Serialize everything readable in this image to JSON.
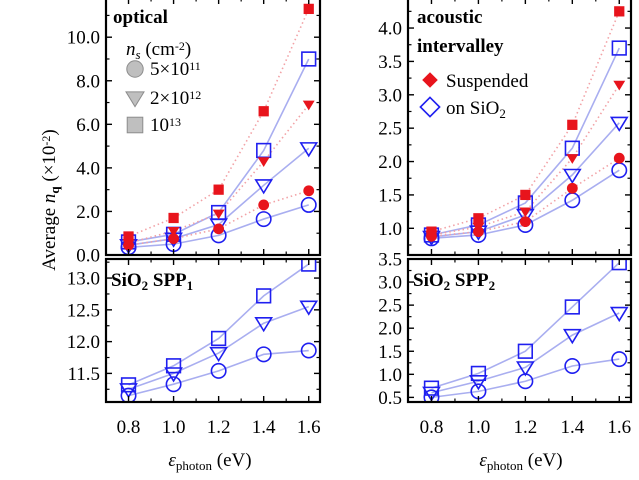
{
  "chart_data": {
    "type": "scatter",
    "ylabel_parts": [
      "Average ",
      "n",
      "q",
      " (×10",
      "-2",
      ")"
    ],
    "xlabel_parts": [
      "ε",
      "photon",
      " (eV)"
    ],
    "x": [
      0.8,
      1.0,
      1.2,
      1.4,
      1.6
    ],
    "xlim": [
      0.7,
      1.65
    ],
    "xticks": [
      "0.8",
      "1.0",
      "1.2",
      "1.4",
      "1.6"
    ],
    "legend_ns": {
      "title_parts": [
        "n",
        "s",
        " (cm",
        "-2",
        ")"
      ],
      "entries": [
        {
          "marker": "circle",
          "parts": [
            "5×10",
            "11"
          ]
        },
        {
          "marker": "triangle",
          "parts": [
            "2×10",
            "12"
          ]
        },
        {
          "marker": "square",
          "parts": [
            "10",
            "13"
          ]
        }
      ]
    },
    "legend_substrate": {
      "entries": [
        {
          "marker": "diamond-filled",
          "label": "Suspended"
        },
        {
          "marker": "diamond-open",
          "label_parts": [
            "on SiO",
            "2"
          ]
        }
      ]
    },
    "colors": {
      "suspended": "#e8141c",
      "sio2": "#1f1ff0",
      "line_sio2": "#a9aef0",
      "line_suspended": "#f2a2a6",
      "legend_gray": "#bfbfbf"
    },
    "panels": [
      {
        "title_parts": [
          "optical"
        ],
        "ylim": [
          0,
          11.8
        ],
        "yticks": [
          "0.0",
          "2.0",
          "4.0",
          "6.0",
          "8.0",
          "10.0"
        ],
        "series": [
          {
            "group": "sio2",
            "marker": "circle",
            "y": [
              0.35,
              0.5,
              0.9,
              1.65,
              2.3
            ]
          },
          {
            "group": "sio2",
            "marker": "triangle",
            "y": [
              0.45,
              0.75,
              1.4,
              3.2,
              4.9
            ]
          },
          {
            "group": "sio2",
            "marker": "square",
            "y": [
              0.6,
              0.95,
              1.95,
              4.8,
              9.0
            ]
          },
          {
            "group": "suspended",
            "marker": "circle",
            "y": [
              0.45,
              0.75,
              1.2,
              2.3,
              2.95
            ]
          },
          {
            "group": "suspended",
            "marker": "triangle",
            "y": [
              0.55,
              1.1,
              1.9,
              4.3,
              6.9
            ]
          },
          {
            "group": "suspended",
            "marker": "square",
            "y": [
              0.85,
              1.7,
              3.0,
              6.6,
              11.3
            ]
          }
        ]
      },
      {
        "title_parts": [
          "acoustic",
          "intervalley"
        ],
        "ylim": [
          0.6,
          4.45
        ],
        "yticks": [
          "1.0",
          "1.5",
          "2.0",
          "2.5",
          "3.0",
          "3.5",
          "4.0"
        ],
        "series": [
          {
            "group": "sio2",
            "marker": "circle",
            "y": [
              0.85,
              0.9,
              1.05,
              1.42,
              1.87
            ]
          },
          {
            "group": "sio2",
            "marker": "triangle",
            "y": [
              0.87,
              0.95,
              1.2,
              1.8,
              2.58
            ]
          },
          {
            "group": "sio2",
            "marker": "square",
            "y": [
              0.9,
              1.05,
              1.38,
              2.2,
              3.7
            ]
          },
          {
            "group": "suspended",
            "marker": "circle",
            "y": [
              0.88,
              0.95,
              1.1,
              1.6,
              2.05
            ]
          },
          {
            "group": "suspended",
            "marker": "triangle",
            "y": [
              0.9,
              1.02,
              1.25,
              2.05,
              3.15
            ]
          },
          {
            "group": "suspended",
            "marker": "square",
            "y": [
              0.95,
              1.15,
              1.5,
              2.55,
              4.25
            ]
          }
        ]
      },
      {
        "title_parts": [
          "SiO",
          "2",
          " SPP",
          "1"
        ],
        "ylim": [
          11.05,
          13.3
        ],
        "yticks": [
          "11.5",
          "12.0",
          "12.5",
          "13.0"
        ],
        "series": [
          {
            "group": "sio2",
            "marker": "circle",
            "y": [
              11.15,
              11.33,
              11.54,
              11.8,
              11.86
            ]
          },
          {
            "group": "sio2",
            "marker": "triangle",
            "y": [
              11.25,
              11.5,
              11.82,
              12.29,
              12.55
            ]
          },
          {
            "group": "sio2",
            "marker": "square",
            "y": [
              11.32,
              11.62,
              12.05,
              12.72,
              13.22
            ]
          }
        ]
      },
      {
        "title_parts": [
          "SiO",
          "2",
          " SPP",
          "2"
        ],
        "ylim": [
          0.4,
          3.5
        ],
        "yticks": [
          "0.5",
          "1.0",
          "1.5",
          "2.0",
          "2.5",
          "3.0",
          "3.5"
        ],
        "series": [
          {
            "group": "sio2",
            "marker": "circle",
            "y": [
              0.5,
              0.63,
              0.85,
              1.18,
              1.33
            ]
          },
          {
            "group": "sio2",
            "marker": "triangle",
            "y": [
              0.6,
              0.85,
              1.15,
              1.85,
              2.33
            ]
          },
          {
            "group": "sio2",
            "marker": "square",
            "y": [
              0.7,
              1.02,
              1.5,
              2.46,
              3.42
            ]
          }
        ]
      }
    ]
  }
}
